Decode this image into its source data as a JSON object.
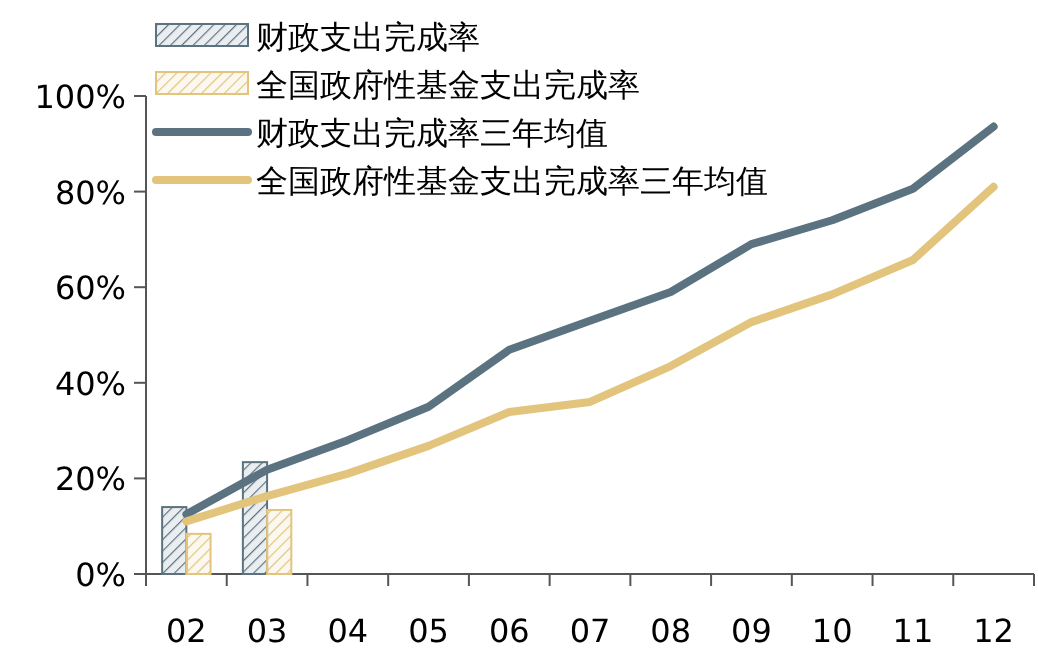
{
  "chart_data": {
    "type": "bar",
    "categories": [
      "02",
      "03",
      "04",
      "05",
      "06",
      "07",
      "08",
      "09",
      "10",
      "11",
      "12"
    ],
    "series": [
      {
        "name": "财政支出完成率",
        "color": "#5b7281",
        "values": [
          14,
          23.4,
          null,
          null,
          null,
          null,
          null,
          null,
          null,
          null,
          null
        ]
      },
      {
        "name": "全国政府性基金支出完成率",
        "color": "#e2c47c",
        "values": [
          8.4,
          13.4,
          null,
          null,
          null,
          null,
          null,
          null,
          null,
          null,
          null
        ]
      },
      {
        "name": "财政支出完成率三年均值",
        "type": "line",
        "color": "#5b7281",
        "values": [
          12.5,
          21.8,
          28,
          35,
          46.9,
          53,
          59,
          69,
          74,
          80.6,
          93.6
        ]
      },
      {
        "name": "全国政府性基金支出完成率三年均值",
        "type": "line",
        "color": "#e2c47c",
        "values": [
          11,
          16.3,
          21,
          26.8,
          33.9,
          36,
          43.5,
          52.7,
          58.5,
          65.7,
          81
        ]
      }
    ],
    "ylim": [
      0,
      100
    ],
    "yticks": [
      {
        "value": 0,
        "label": "0%"
      },
      {
        "value": 20,
        "label": "20%"
      },
      {
        "value": 40,
        "label": "40%"
      },
      {
        "value": 60,
        "label": "60%"
      },
      {
        "value": 80,
        "label": "80%"
      },
      {
        "value": 100,
        "label": "100%"
      }
    ],
    "legend": "top left"
  }
}
